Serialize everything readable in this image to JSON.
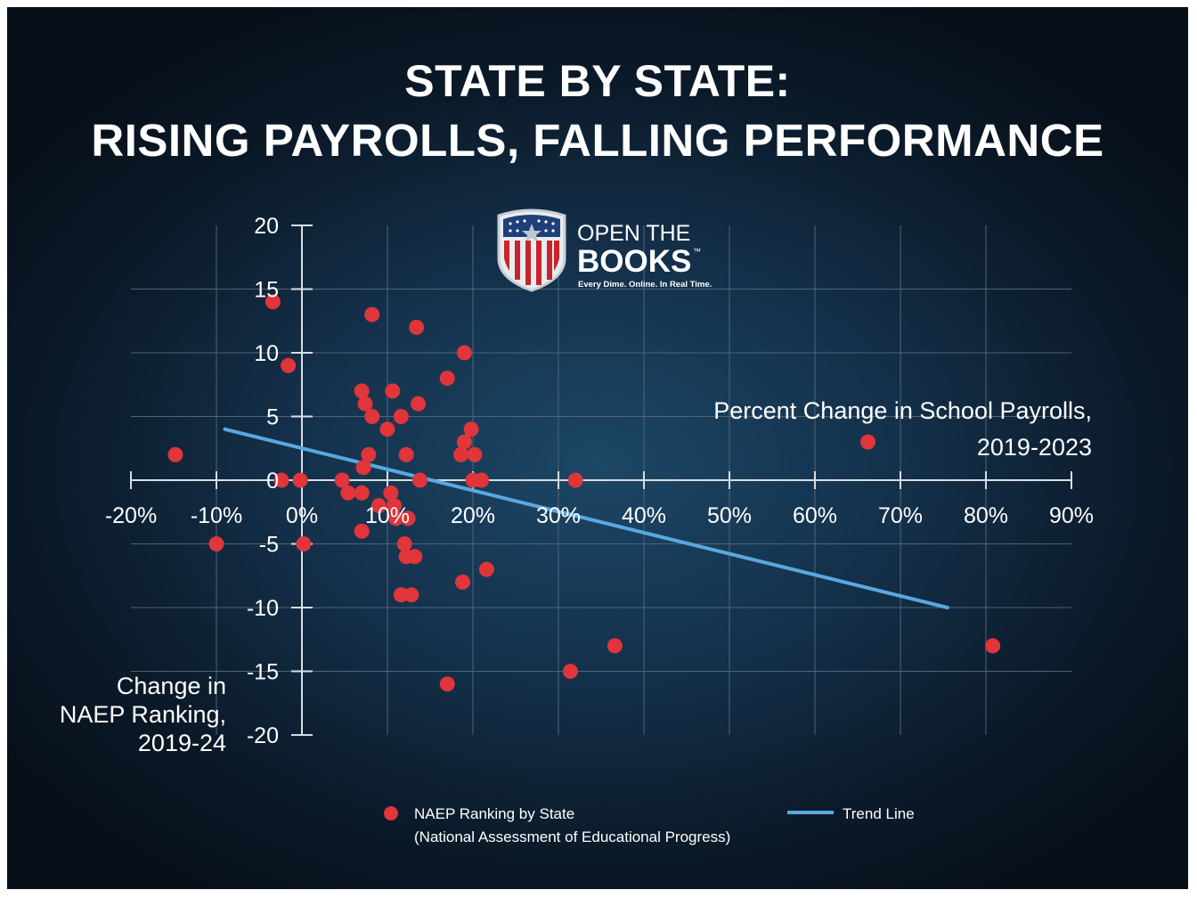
{
  "header": {
    "title_line1": "STATE BY STATE:",
    "title_line2": "RISING PAYROLLS, FALLING PERFORMANCE"
  },
  "logo": {
    "line1": "OPEN THE",
    "line2": "BOOKS",
    "trademark": "™",
    "tagline": "Every Dime. Online. In Real Time."
  },
  "legend": {
    "points_label": "NAEP Ranking by State",
    "points_sublabel": "(National Assessment of Educational Progress)",
    "trend_label": "Trend Line"
  },
  "colors": {
    "point": "#e0353a",
    "trend": "#5aa8e0",
    "axis": "#d9dee4",
    "grid": "#4f6477"
  },
  "chart_data": {
    "type": "scatter",
    "x_label_lines": [
      "Percent Change in School Payrolls,",
      "2019-2023"
    ],
    "y_label_lines": [
      "Change in",
      "NAEP Ranking,",
      "2019-24"
    ],
    "xlim": [
      -20,
      90
    ],
    "ylim": [
      -20,
      20
    ],
    "x_ticks": [
      -20,
      -10,
      0,
      10,
      20,
      30,
      40,
      50,
      60,
      70,
      80,
      90
    ],
    "x_tick_labels": [
      "-20%",
      "-10%",
      "0%",
      "10%",
      "20%",
      "30%",
      "40%",
      "50%",
      "60%",
      "70%",
      "80%",
      "90%"
    ],
    "y_ticks": [
      20,
      15,
      10,
      5,
      0,
      -5,
      -10,
      -15,
      -20
    ],
    "y_tick_labels": [
      "20",
      "15",
      "10",
      "5",
      "0",
      "-5",
      "-10",
      "-15",
      "-20"
    ],
    "grid": true,
    "series": [
      {
        "name": "NAEP Ranking by State",
        "points": [
          [
            -14.8,
            2
          ],
          [
            -10,
            -5
          ],
          [
            -3.4,
            14
          ],
          [
            -2.4,
            0
          ],
          [
            -1.6,
            9
          ],
          [
            -0.2,
            0
          ],
          [
            0.2,
            -5
          ],
          [
            4.7,
            0
          ],
          [
            5.4,
            -1
          ],
          [
            7.0,
            7
          ],
          [
            7.0,
            -1
          ],
          [
            7.0,
            -4
          ],
          [
            7.2,
            1
          ],
          [
            7.4,
            6
          ],
          [
            7.8,
            2
          ],
          [
            8.2,
            5
          ],
          [
            8.2,
            13
          ],
          [
            9.0,
            -2
          ],
          [
            10.0,
            4
          ],
          [
            10.4,
            -1
          ],
          [
            10.6,
            7
          ],
          [
            10.8,
            -2
          ],
          [
            11.0,
            -3
          ],
          [
            11.6,
            5
          ],
          [
            11.6,
            -9
          ],
          [
            12.0,
            -5
          ],
          [
            12.2,
            2
          ],
          [
            12.2,
            -6
          ],
          [
            12.4,
            -3
          ],
          [
            12.8,
            -9
          ],
          [
            13.2,
            -6
          ],
          [
            13.4,
            12
          ],
          [
            13.6,
            6
          ],
          [
            13.8,
            0
          ],
          [
            17.0,
            8
          ],
          [
            17.0,
            -16
          ],
          [
            18.6,
            2
          ],
          [
            18.8,
            -8
          ],
          [
            19.0,
            3
          ],
          [
            19.0,
            10
          ],
          [
            19.8,
            4
          ],
          [
            20.0,
            0
          ],
          [
            20.2,
            2
          ],
          [
            21.0,
            0
          ],
          [
            21.6,
            -7
          ],
          [
            31.4,
            -15
          ],
          [
            32.0,
            0
          ],
          [
            36.6,
            -13
          ],
          [
            66.2,
            3
          ],
          [
            80.8,
            -13
          ]
        ]
      }
    ],
    "trend_line": {
      "name": "Trend Line",
      "x": [
        -9,
        75.5
      ],
      "y": [
        4,
        -10
      ]
    }
  }
}
